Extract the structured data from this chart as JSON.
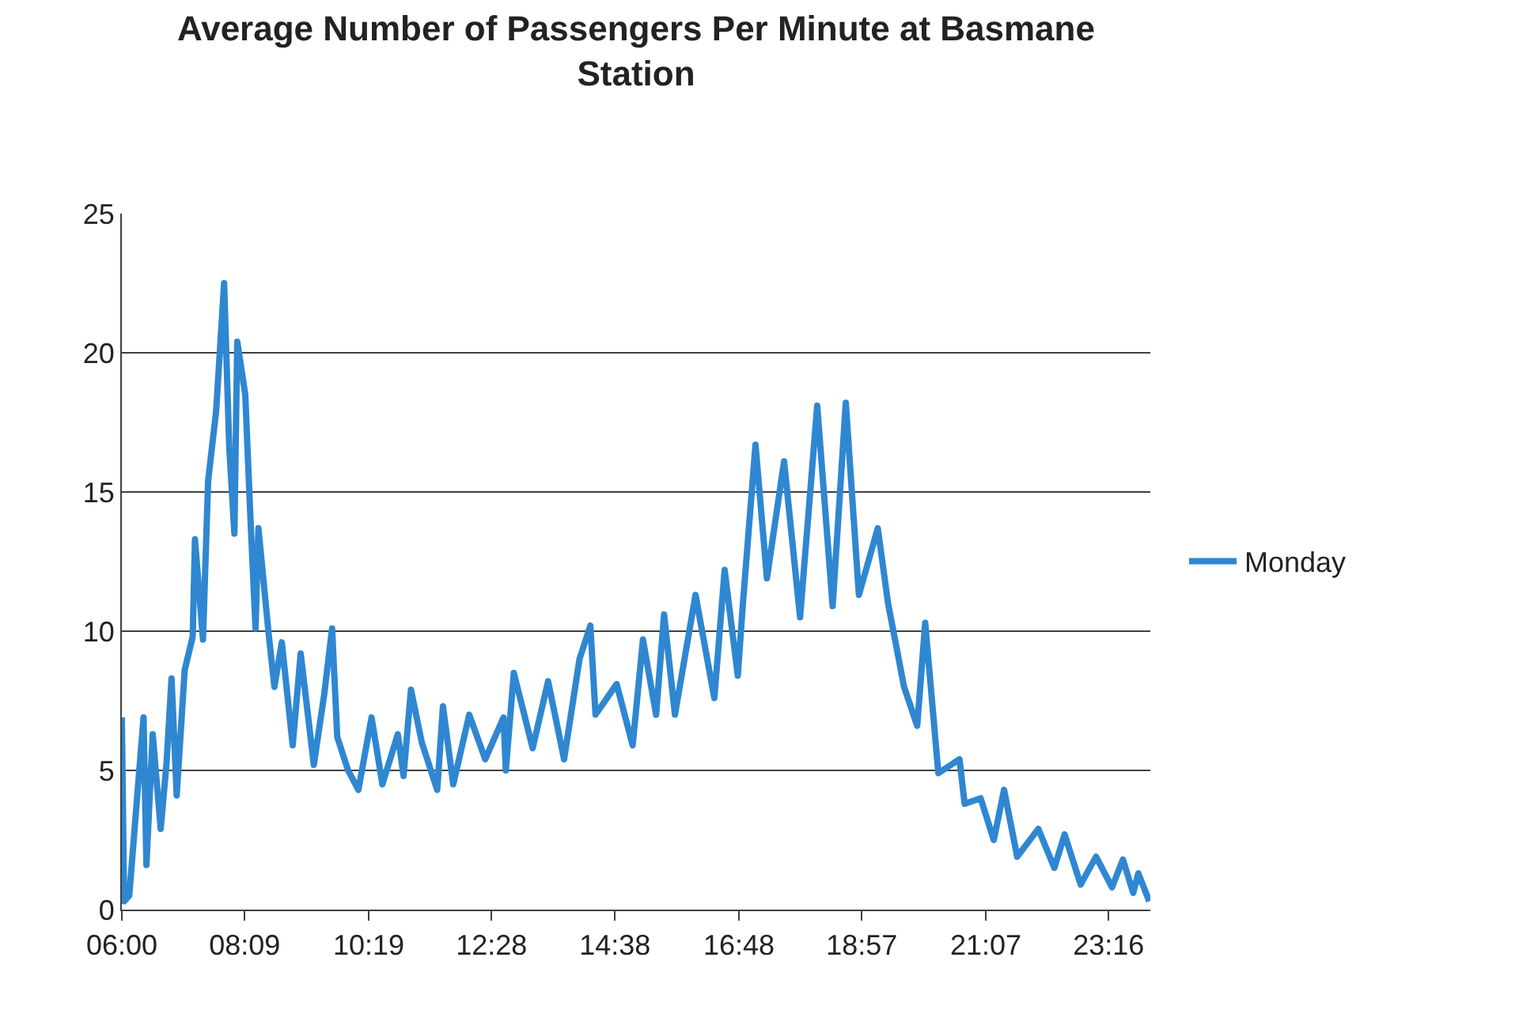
{
  "chart_data": {
    "type": "line",
    "title": "Average Number of Passengers Per Minute at Basmane Station",
    "x": [
      6.0,
      6.04,
      6.13,
      6.27,
      6.38,
      6.43,
      6.54,
      6.68,
      6.78,
      6.87,
      6.96,
      7.1,
      7.24,
      7.28,
      7.42,
      7.51,
      7.65,
      7.79,
      7.88,
      7.97,
      8.02,
      8.16,
      8.25,
      8.34,
      8.39,
      8.57,
      8.67,
      8.8,
      8.99,
      9.13,
      9.36,
      9.54,
      9.68,
      9.77,
      9.96,
      10.14,
      10.37,
      10.56,
      10.83,
      10.93,
      11.06,
      11.25,
      11.52,
      11.62,
      11.8,
      12.08,
      12.36,
      12.68,
      12.72,
      12.86,
      13.19,
      13.46,
      13.74,
      14.01,
      14.2,
      14.29,
      14.66,
      14.94,
      15.12,
      15.35,
      15.49,
      15.68,
      16.04,
      16.37,
      16.55,
      16.78,
      16.87,
      17.09,
      17.29,
      17.59,
      17.87,
      18.17,
      18.44,
      18.67,
      18.9,
      19.23,
      19.41,
      19.69,
      19.92,
      20.06,
      20.29,
      20.66,
      20.75,
      21.03,
      21.26,
      21.44,
      21.67,
      22.04,
      22.32,
      22.5,
      22.78,
      23.05,
      23.33,
      23.52,
      23.7,
      23.79,
      23.98
    ],
    "series": [
      {
        "name": "Monday",
        "color": "#2f87d1",
        "values": [
          6.9,
          0.3,
          0.5,
          4.1,
          6.9,
          1.6,
          6.3,
          2.9,
          5.2,
          8.3,
          4.1,
          8.6,
          9.8,
          13.3,
          9.7,
          15.4,
          17.9,
          22.5,
          16.6,
          13.5,
          20.4,
          18.5,
          14.1,
          10.1,
          13.7,
          9.9,
          8.0,
          9.6,
          5.9,
          9.2,
          5.2,
          7.7,
          10.1,
          6.2,
          5.0,
          4.3,
          6.9,
          4.5,
          6.3,
          4.8,
          7.9,
          6.0,
          4.3,
          7.3,
          4.5,
          7.0,
          5.4,
          6.9,
          5.0,
          8.5,
          5.8,
          8.2,
          5.4,
          9.0,
          10.2,
          7.0,
          8.1,
          5.9,
          9.7,
          7.0,
          10.6,
          7.0,
          11.3,
          7.6,
          12.2,
          8.4,
          11.0,
          16.7,
          11.9,
          16.1,
          10.5,
          18.1,
          10.9,
          18.2,
          11.3,
          13.7,
          11.0,
          8.0,
          6.6,
          10.3,
          4.9,
          5.4,
          3.8,
          4.0,
          2.5,
          4.3,
          1.9,
          2.9,
          1.5,
          2.7,
          0.9,
          1.9,
          0.8,
          1.8,
          0.6,
          1.3,
          0.3
        ]
      }
    ],
    "xlim": [
      6,
      24
    ],
    "xticks": [
      {
        "value": 6,
        "label": "06:00"
      },
      {
        "value": 8.15,
        "label": "08:09"
      },
      {
        "value": 10.32,
        "label": "10:19"
      },
      {
        "value": 12.47,
        "label": "12:28"
      },
      {
        "value": 14.63,
        "label": "14:38"
      },
      {
        "value": 16.8,
        "label": "16:48"
      },
      {
        "value": 18.95,
        "label": "18:57"
      },
      {
        "value": 21.12,
        "label": "21:07"
      },
      {
        "value": 23.27,
        "label": "23:16"
      }
    ],
    "ylim": [
      0,
      25
    ],
    "yticks": [
      0,
      5,
      10,
      15,
      20,
      25
    ],
    "grid": "y",
    "legend": "right",
    "marker": "none",
    "line_style": "solid"
  }
}
